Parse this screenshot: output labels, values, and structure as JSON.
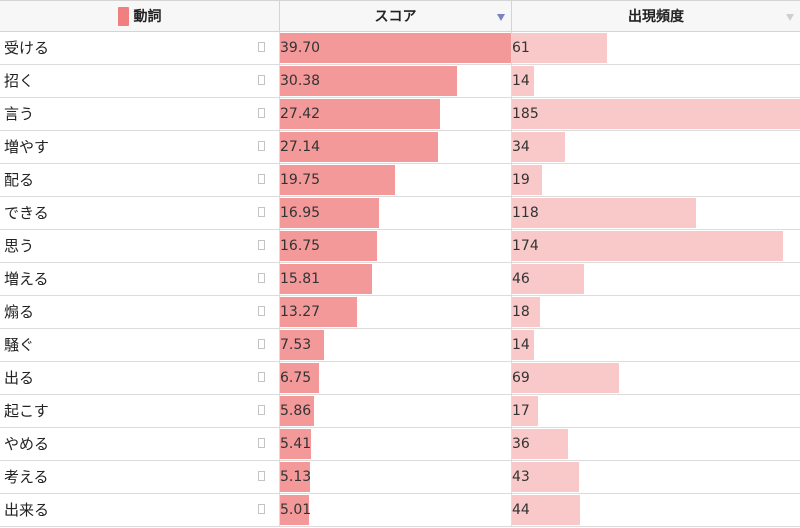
{
  "header": {
    "verb_label": "動詞",
    "score_label": "スコア",
    "freq_label": "出現頻度"
  },
  "colors": {
    "score_bar": "#f4999a",
    "freq_bar": "#f9c9ca",
    "verb_swatch": "#f08080"
  },
  "sort": {
    "column": "score",
    "direction": "descending"
  },
  "rows": [
    {
      "verb": "受ける",
      "score": "39.70",
      "freq": "61"
    },
    {
      "verb": "招く",
      "score": "30.38",
      "freq": "14"
    },
    {
      "verb": "言う",
      "score": "27.42",
      "freq": "185"
    },
    {
      "verb": "増やす",
      "score": "27.14",
      "freq": "34"
    },
    {
      "verb": "配る",
      "score": "19.75",
      "freq": "19"
    },
    {
      "verb": "できる",
      "score": "16.95",
      "freq": "118"
    },
    {
      "verb": "思う",
      "score": "16.75",
      "freq": "174"
    },
    {
      "verb": "増える",
      "score": "15.81",
      "freq": "46"
    },
    {
      "verb": "煽る",
      "score": "13.27",
      "freq": "18"
    },
    {
      "verb": "騒ぐ",
      "score": "7.53",
      "freq": "14"
    },
    {
      "verb": "出る",
      "score": "6.75",
      "freq": "69"
    },
    {
      "verb": "起こす",
      "score": "5.86",
      "freq": "17"
    },
    {
      "verb": "やめる",
      "score": "5.41",
      "freq": "36"
    },
    {
      "verb": "考える",
      "score": "5.13",
      "freq": "43"
    },
    {
      "verb": "出来る",
      "score": "5.01",
      "freq": "44"
    }
  ]
}
